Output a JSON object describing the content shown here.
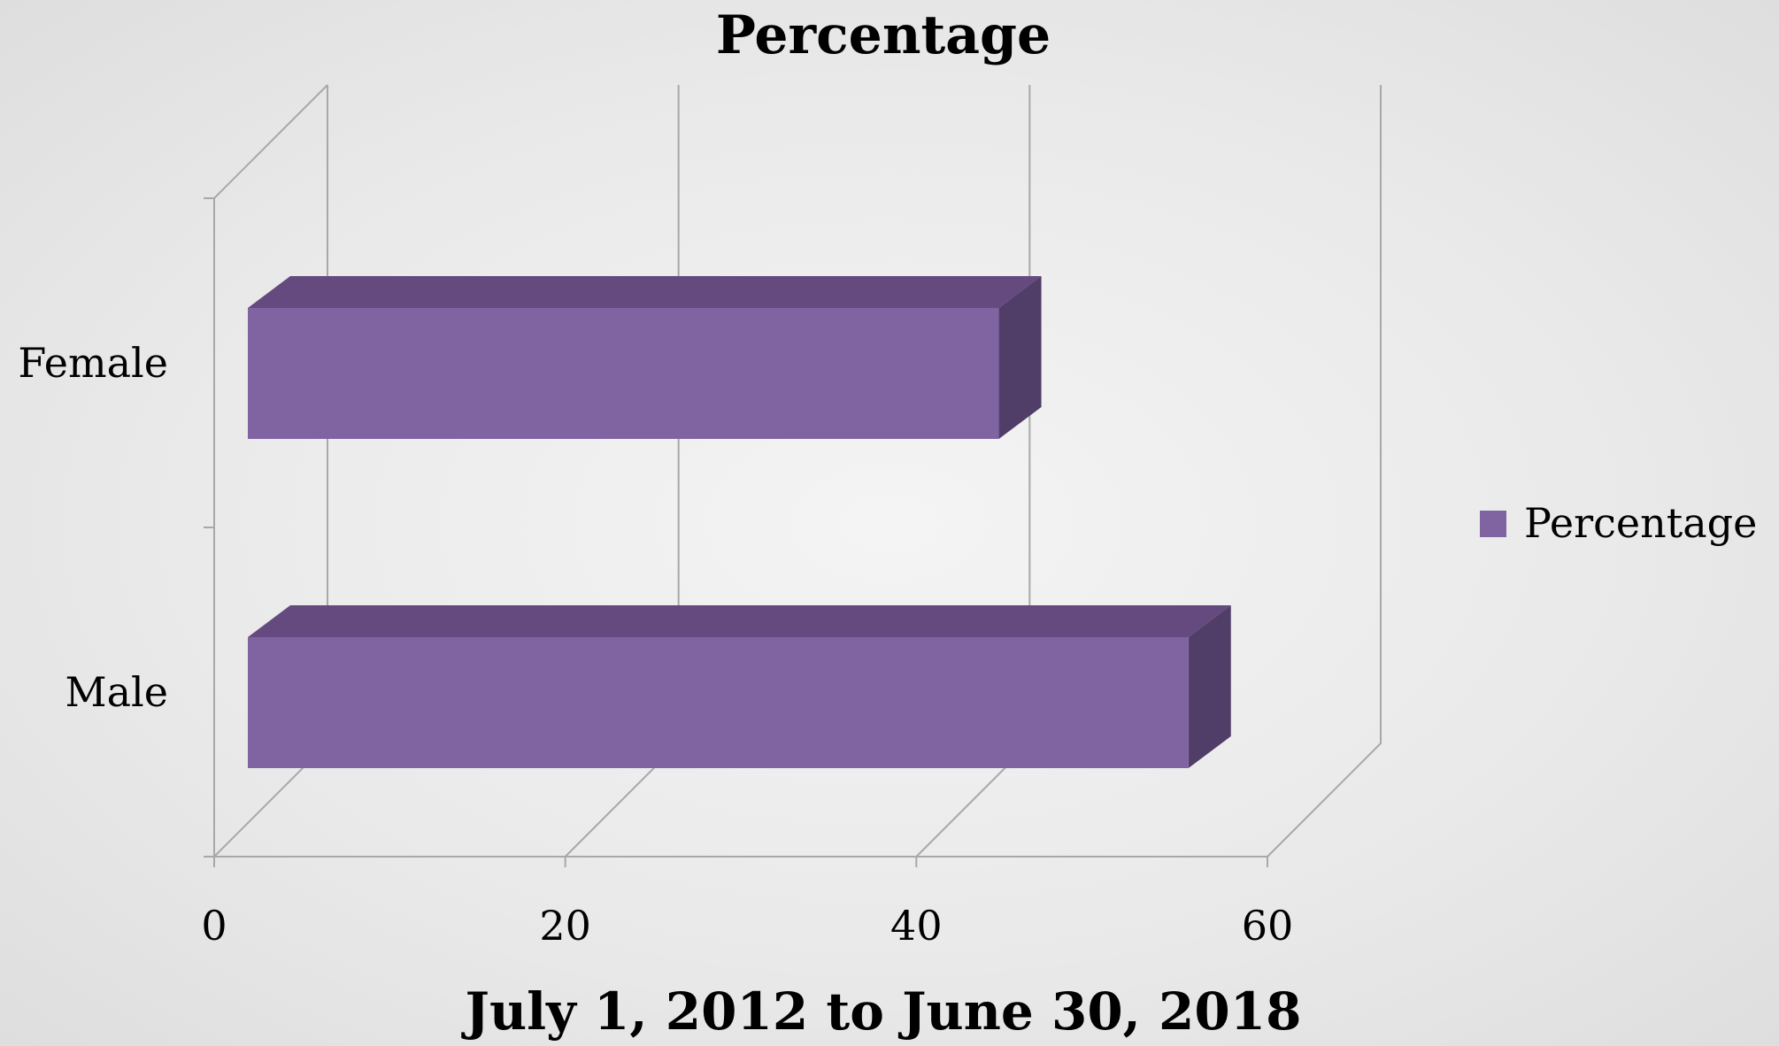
{
  "chart_data": {
    "type": "bar",
    "orientation": "horizontal",
    "title": "Percentage",
    "xlabel": "July 1, 2012 to June 30, 2018",
    "ylabel": "",
    "categories": [
      "Male",
      "Female"
    ],
    "series": [
      {
        "name": "Percentage",
        "values": [
          55.5,
          44.7
        ]
      }
    ],
    "xlim": [
      0,
      60
    ],
    "x_ticks": [
      "0",
      "20",
      "40",
      "60"
    ],
    "grid": true,
    "legend_position": "right",
    "style": "3d",
    "colors": {
      "bar_front": "#8064a2",
      "bar_top": "#644a7e",
      "bar_side": "#513e68",
      "gridline": "#a8a8a8"
    }
  }
}
